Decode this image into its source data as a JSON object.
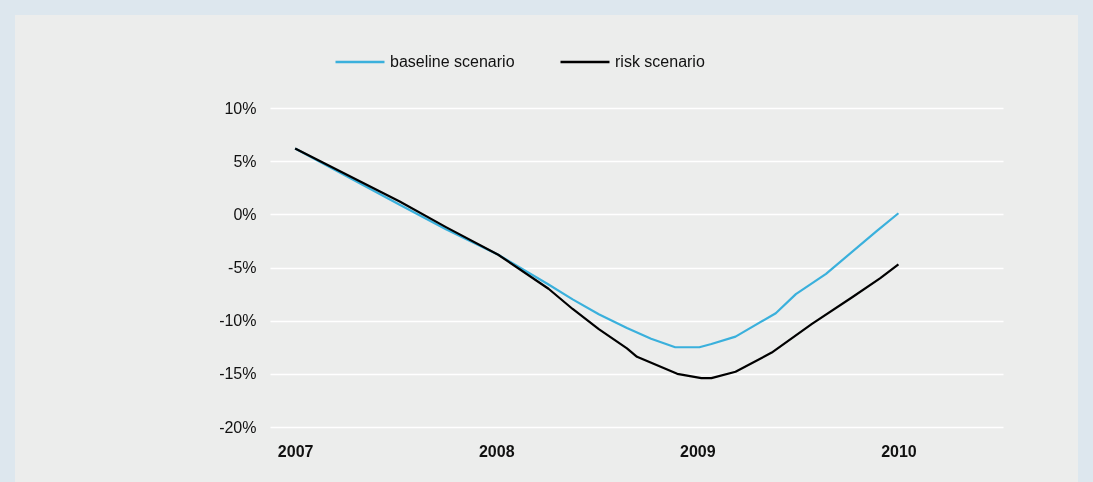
{
  "chart_data": {
    "type": "line",
    "legend": "top",
    "grid": "y",
    "xlim": [
      2006.875,
      2010.52
    ],
    "xticks": [
      2007,
      2008,
      2009,
      2010
    ],
    "ylim": [
      -20,
      10
    ],
    "yticks": [
      {
        "value": -20,
        "label": "-20%"
      },
      {
        "value": -15,
        "label": "-15%"
      },
      {
        "value": -10,
        "label": "-10%"
      },
      {
        "value": -5,
        "label": "-5%"
      },
      {
        "value": 0,
        "label": "0%"
      },
      {
        "value": 5,
        "label": "5%"
      },
      {
        "value": 10,
        "label": "10%"
      }
    ],
    "x": [
      2007.0,
      2007.52,
      2007.75,
      2008.01,
      2008.26,
      2008.38,
      2008.51,
      2008.65,
      2008.77,
      2008.89,
      2009.01,
      2009.07,
      2009.19,
      2009.39,
      2009.49,
      2009.64,
      2009.89,
      2010.0
    ],
    "series": [
      {
        "name": "baseline scenario",
        "color": "#3ab0dc",
        "values": [
          6.2,
          0.9,
          -1.4,
          -3.8,
          -6.6,
          -8.0,
          -9.4,
          -10.7,
          -11.7,
          -12.5,
          -12.5,
          -12.2,
          -11.5,
          -9.3,
          -7.5,
          -5.6,
          -1.6,
          0.1
        ]
      },
      {
        "name": "risk scenario",
        "color": "#000000",
        "x": [
          2007.0,
          2007.52,
          2007.75,
          2008.01,
          2008.26,
          2008.38,
          2008.51,
          2008.65,
          2008.7,
          2008.9,
          2009.02,
          2009.07,
          2009.19,
          2009.37,
          2009.57,
          2009.77,
          2009.91,
          2010.0
        ],
        "values": [
          6.2,
          1.2,
          -1.2,
          -3.8,
          -7.0,
          -8.9,
          -10.8,
          -12.6,
          -13.4,
          -15.0,
          -15.4,
          -15.4,
          -14.8,
          -13.0,
          -10.3,
          -7.8,
          -6.0,
          -4.7
        ]
      }
    ]
  }
}
